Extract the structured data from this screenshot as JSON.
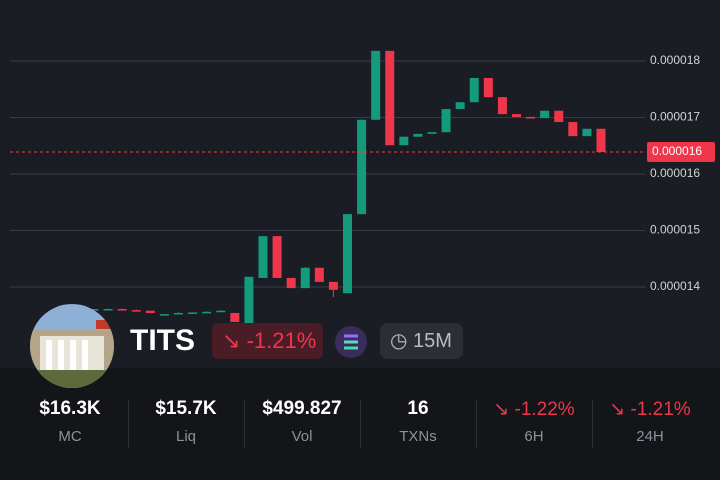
{
  "chart_data": {
    "type": "candlestick",
    "open": [
      1.36e-05,
      1.361e-05,
      1.361e-05,
      1.359e-05,
      1.358e-05,
      1.35e-05,
      1.352e-05,
      1.354e-05,
      1.355e-05,
      1.356e-05,
      1.354e-05,
      1.324e-05,
      1.416e-05,
      1.49e-05,
      1.416e-05,
      1.398e-05,
      1.434e-05,
      1.409e-05,
      1.389e-05,
      1.529e-05,
      1.696e-05,
      1.818e-05,
      1.651e-05,
      1.666e-05,
      1.671e-05,
      1.674e-05,
      1.715e-05,
      1.727e-05,
      1.77e-05,
      1.736e-05,
      1.706e-05,
      1.701e-05,
      1.699e-05,
      1.712e-05,
      1.692e-05,
      1.667e-05,
      1.68e-05
    ],
    "high": [
      1.361e-05,
      1.362e-05,
      1.362e-05,
      1.36e-05,
      1.358e-05,
      1.352e-05,
      1.355e-05,
      1.355e-05,
      1.357e-05,
      1.358e-05,
      1.354e-05,
      1.418e-05,
      1.49e-05,
      1.49e-05,
      1.416e-05,
      1.435e-05,
      1.434e-05,
      1.409e-05,
      1.529e-05,
      1.696e-05,
      1.818e-05,
      1.818e-05,
      1.666e-05,
      1.671e-05,
      1.674e-05,
      1.715e-05,
      1.727e-05,
      1.77e-05,
      1.77e-05,
      1.736e-05,
      1.706e-05,
      1.701e-05,
      1.712e-05,
      1.712e-05,
      1.692e-05,
      1.68e-05,
      1.68e-05
    ],
    "low": [
      1.359e-05,
      1.36e-05,
      1.359e-05,
      1.358e-05,
      1.353e-05,
      1.349e-05,
      1.352e-05,
      1.353e-05,
      1.355e-05,
      1.356e-05,
      1.338e-05,
      1.324e-05,
      1.416e-05,
      1.416e-05,
      1.398e-05,
      1.398e-05,
      1.409e-05,
      1.382e-05,
      1.389e-05,
      1.529e-05,
      1.696e-05,
      1.651e-05,
      1.651e-05,
      1.666e-05,
      1.671e-05,
      1.674e-05,
      1.715e-05,
      1.727e-05,
      1.736e-05,
      1.706e-05,
      1.701e-05,
      1.699e-05,
      1.699e-05,
      1.692e-05,
      1.667e-05,
      1.667e-05,
      1.639e-05
    ],
    "close": [
      1.361e-05,
      1.361e-05,
      1.359e-05,
      1.358e-05,
      1.354e-05,
      1.352e-05,
      1.354e-05,
      1.355e-05,
      1.356e-05,
      1.358e-05,
      1.338e-05,
      1.418e-05,
      1.49e-05,
      1.416e-05,
      1.398e-05,
      1.434e-05,
      1.409e-05,
      1.395e-05,
      1.529e-05,
      1.696e-05,
      1.818e-05,
      1.651e-05,
      1.666e-05,
      1.671e-05,
      1.674e-05,
      1.715e-05,
      1.727e-05,
      1.77e-05,
      1.736e-05,
      1.706e-05,
      1.701e-05,
      1.699e-05,
      1.712e-05,
      1.692e-05,
      1.667e-05,
      1.68e-05,
      1.639e-05
    ],
    "up_color": "#139b7c",
    "down_color": "#f0364b",
    "ylim": [
      1.2566e-05,
      1.908e-05
    ],
    "yticks": [
      1.4e-05,
      1.5e-05,
      1.6e-05,
      1.7e-05,
      1.8e-05
    ],
    "grid": true,
    "last_price": {
      "value": 1.639e-05,
      "label": "0.000016"
    }
  },
  "token": {
    "symbol": "TITS",
    "change": "-1.21%",
    "interval": "15M"
  },
  "stats": [
    {
      "value": "$16.3K",
      "label": "MC"
    },
    {
      "value": "$15.7K",
      "label": "Liq"
    },
    {
      "value": "$499.827",
      "label": "Vol"
    },
    {
      "value": "16",
      "label": "TXNs"
    },
    {
      "value": "-1.22%",
      "label": "6H"
    },
    {
      "value": "-1.21%",
      "label": "24H"
    }
  ]
}
